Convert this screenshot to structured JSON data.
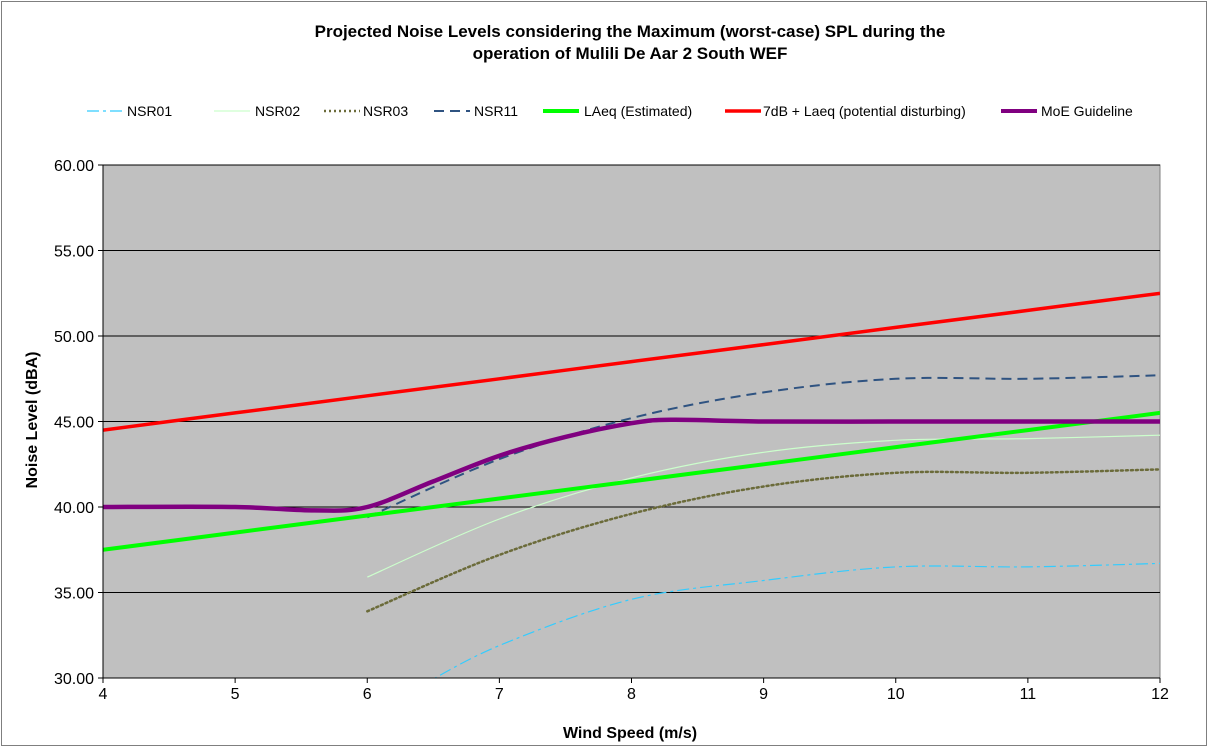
{
  "chart_data": {
    "type": "line",
    "title_line1": "Projected Noise Levels considering the Maximum (worst-case) SPL during the",
    "title_line2": "operation of Mulili De Aar 2 South WEF",
    "xlabel": "Wind Speed (m/s)",
    "ylabel": "Noise Level (dBA)",
    "xlim": [
      4,
      12
    ],
    "ylim": [
      30,
      60
    ],
    "x_ticks": [
      "4",
      "5",
      "6",
      "7",
      "8",
      "9",
      "10",
      "11",
      "12"
    ],
    "y_ticks": [
      "30.00",
      "35.00",
      "40.00",
      "45.00",
      "50.00",
      "55.00",
      "60.00"
    ],
    "grid": "horizontal",
    "legend_position": "top",
    "plot_background": "#c0c0c0",
    "series": [
      {
        "name": "NSR01",
        "color": "#33ccff",
        "dash": "12,4,3,4",
        "width": 1.2,
        "x": [
          6.4,
          7,
          8,
          9,
          10,
          11,
          12
        ],
        "y": [
          29.5,
          31.9,
          34.6,
          35.7,
          36.5,
          36.5,
          36.7
        ]
      },
      {
        "name": "NSR02",
        "color": "#ccffcc",
        "dash": "",
        "width": 1.2,
        "x": [
          6,
          7,
          8,
          9,
          10,
          11,
          12
        ],
        "y": [
          35.9,
          39.3,
          41.7,
          43.2,
          43.9,
          44.0,
          44.2
        ]
      },
      {
        "name": "NSR03",
        "color": "#6b6b3a",
        "dash": "2,3",
        "width": 2.5,
        "x": [
          6,
          7,
          8,
          9,
          10,
          11,
          12
        ],
        "y": [
          33.9,
          37.2,
          39.6,
          41.2,
          42.0,
          42.0,
          42.2
        ]
      },
      {
        "name": "NSR11",
        "color": "#2f5381",
        "dash": "10,6",
        "width": 2,
        "x": [
          6,
          7,
          8,
          9,
          10,
          11,
          12
        ],
        "y": [
          39.4,
          42.8,
          45.2,
          46.7,
          47.5,
          47.5,
          47.7
        ]
      },
      {
        "name": "LAeq (Estimated)",
        "color": "#00ff00",
        "dash": "",
        "width": 4,
        "x": [
          4,
          5,
          6,
          7,
          8,
          9,
          10,
          11,
          12
        ],
        "y": [
          37.5,
          38.5,
          39.5,
          40.5,
          41.5,
          42.5,
          43.5,
          44.5,
          45.5
        ]
      },
      {
        "name": "7dB + Laeq (potential disturbing)",
        "color": "#ff0000",
        "dash": "",
        "width": 3.5,
        "x": [
          4,
          5,
          6,
          7,
          8,
          9,
          10,
          11,
          12
        ],
        "y": [
          44.5,
          45.5,
          46.5,
          47.5,
          48.5,
          49.5,
          50.5,
          51.5,
          52.5
        ]
      },
      {
        "name": "MoE Guideline",
        "color": "#800080",
        "dash": "",
        "width": 4.5,
        "x": [
          4,
          5,
          5.6,
          6,
          6.5,
          7,
          7.5,
          8,
          8.3,
          9,
          10,
          11,
          12
        ],
        "y": [
          40.0,
          40.0,
          39.8,
          40.0,
          41.5,
          43.0,
          44.1,
          44.9,
          45.1,
          45.0,
          45.0,
          45.0,
          45.0
        ]
      }
    ]
  }
}
